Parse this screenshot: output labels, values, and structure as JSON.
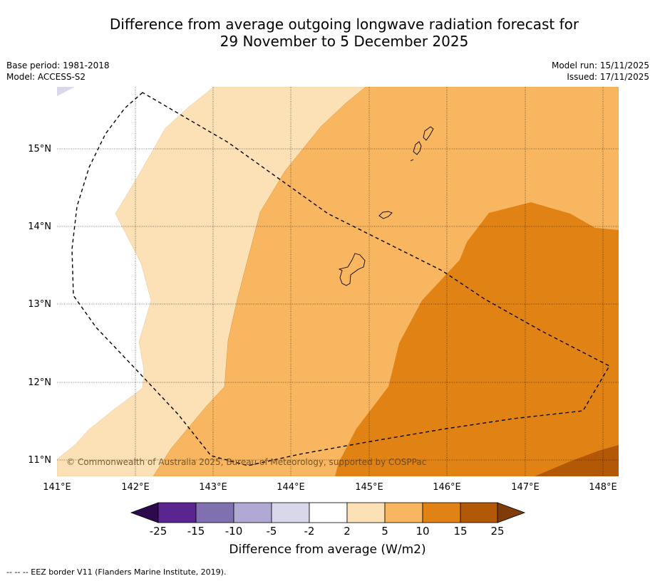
{
  "title_line1": "Difference from average outgoing longwave radiation forecast for",
  "title_line2": "29 November to 5 December 2025",
  "base_period": "Base period: 1981-2018",
  "model": "Model: ACCESS-S2",
  "model_run": "Model run: 15/11/2025",
  "issued": "Issued: 17/11/2025",
  "copyright": "© Commonwealth of Australia 2025, Bureau of Meteorology, supported by COSPPac",
  "lon_labels": [
    "141°E",
    "142°E",
    "143°E",
    "144°E",
    "145°E",
    "146°E",
    "147°E",
    "148°E"
  ],
  "lat_labels": [
    "15°N",
    "14°N",
    "13°N",
    "12°N",
    "11°N"
  ],
  "colorbar": {
    "label": "Difference from average (W/m2)",
    "ticks": [
      "-25",
      "-15",
      "-10",
      "-5",
      "-2",
      "2",
      "5",
      "10",
      "15",
      "25"
    ],
    "colors": {
      "lt_neg25": "#2d0a4e",
      "neg25_neg15": "#5a2590",
      "neg15_neg10": "#8070b0",
      "neg10_neg5": "#b1a9d3",
      "neg5_neg2": "#d8d8ea",
      "neg2_2": "#ffffff",
      "p2_5": "#fce0b6",
      "p5_10": "#f9b660",
      "p10_15": "#e08214",
      "p15_25": "#b35806",
      "gt_25": "#7f3b08"
    }
  },
  "legend_note": "--  --  -- EEZ border V11 (Flanders Marine Institute, 2019)."
}
